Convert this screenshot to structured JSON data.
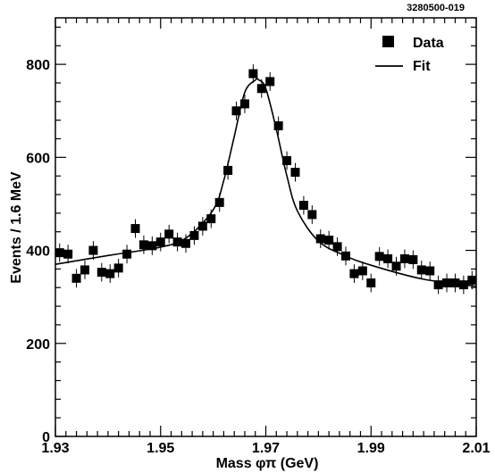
{
  "chart_data": {
    "type": "scatter",
    "figure_id": "3280500-019",
    "xlabel": "Mass φπ (GeV)",
    "ylabel": "Events / 1.6 MeV",
    "xlim": [
      1.93,
      2.01
    ],
    "ylim": [
      0,
      900
    ],
    "x_ticks": [
      1.93,
      1.95,
      1.97,
      1.99,
      2.01
    ],
    "x_tick_labels": [
      "1.93",
      "1.95",
      "1.97",
      "1.99",
      "2.01"
    ],
    "y_ticks": [
      0,
      200,
      400,
      600,
      800
    ],
    "y_tick_labels": [
      "0",
      "200",
      "400",
      "600",
      "800"
    ],
    "grid": false,
    "legend_position": "top-right",
    "series": [
      {
        "name": "Data",
        "style": "square-markers-with-error-bars",
        "x": [
          1.9308,
          1.9324,
          1.934,
          1.9356,
          1.9372,
          1.9388,
          1.9404,
          1.942,
          1.9436,
          1.9452,
          1.9468,
          1.9484,
          1.95,
          1.9516,
          1.9532,
          1.9548,
          1.9564,
          1.958,
          1.9596,
          1.9612,
          1.9628,
          1.9644,
          1.966,
          1.9676,
          1.9692,
          1.9708,
          1.9724,
          1.974,
          1.9756,
          1.9772,
          1.9788,
          1.9804,
          1.982,
          1.9836,
          1.9852,
          1.9868,
          1.9884,
          1.99,
          1.9916,
          1.9932,
          1.9948,
          1.9964,
          1.998,
          1.9996,
          2.0012,
          2.0028,
          2.0044,
          2.006,
          2.0076,
          2.0092
        ],
        "y": [
          395,
          392,
          340,
          358,
          400,
          353,
          350,
          362,
          392,
          447,
          412,
          410,
          418,
          435,
          418,
          415,
          432,
          452,
          468,
          503,
          572,
          700,
          715,
          780,
          748,
          763,
          668,
          593,
          568,
          497,
          477,
          425,
          422,
          408,
          388,
          350,
          356,
          330,
          387,
          382,
          366,
          382,
          380,
          358,
          356,
          326,
          330,
          330,
          326,
          336
        ],
        "yerr": 20
      },
      {
        "name": "Fit",
        "style": "line",
        "model": "gaussian-peak-on-linear-background",
        "x": [
          1.93,
          1.94,
          1.95,
          1.955,
          1.96,
          1.962,
          1.964,
          1.966,
          1.968,
          1.9686,
          1.97,
          1.972,
          1.974,
          1.976,
          1.98,
          1.985,
          1.99,
          2.0,
          2.01
        ],
        "y": [
          370,
          389,
          407,
          428,
          487,
          550,
          645,
          740,
          766,
          767,
          748,
          660,
          560,
          485,
          420,
          389,
          368,
          338,
          323
        ]
      }
    ]
  }
}
